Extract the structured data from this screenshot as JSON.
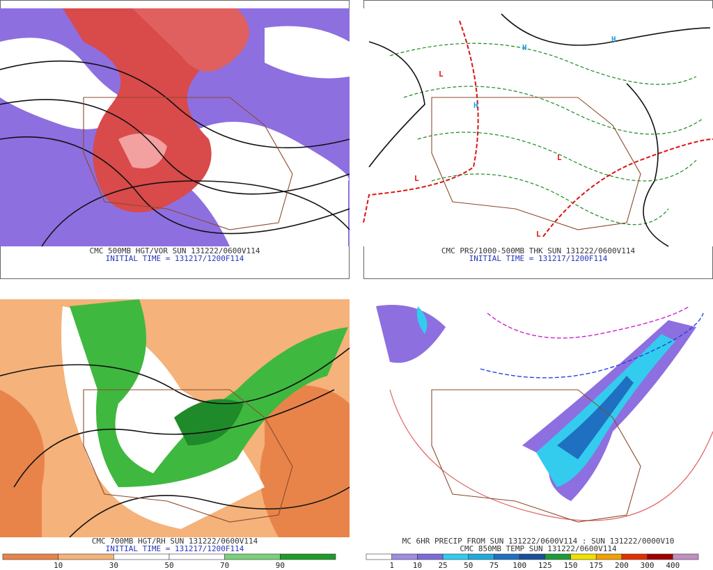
{
  "panels": [
    {
      "caption": "CMC 500MB HGT/VOR SUN 131222/0600V114",
      "subcaption": "INITIAL TIME = 131217/1200F114"
    },
    {
      "caption": "CMC PRS/1000-500MB THK SUN 131222/0600V114",
      "subcaption": "INITIAL TIME = 131217/1200F114"
    },
    {
      "caption": "CMC 700MB HGT/RH SUN 131222/0600V114",
      "subcaption": "INITIAL TIME = 131217/1200F114",
      "colorbar": [
        "10",
        "30",
        "50",
        "70",
        "90"
      ]
    },
    {
      "caption": "MC 6HR PRECIP FROM SUN 131222/0600V114 : SUN 131222/0000V10",
      "subcaption": "CMC 850MB TEMP SUN 131222/0600V114",
      "colorbar": [
        "1",
        "10",
        "25",
        "50",
        "75",
        "100",
        "125",
        "150",
        "175",
        "200",
        "300",
        "400"
      ]
    }
  ]
}
